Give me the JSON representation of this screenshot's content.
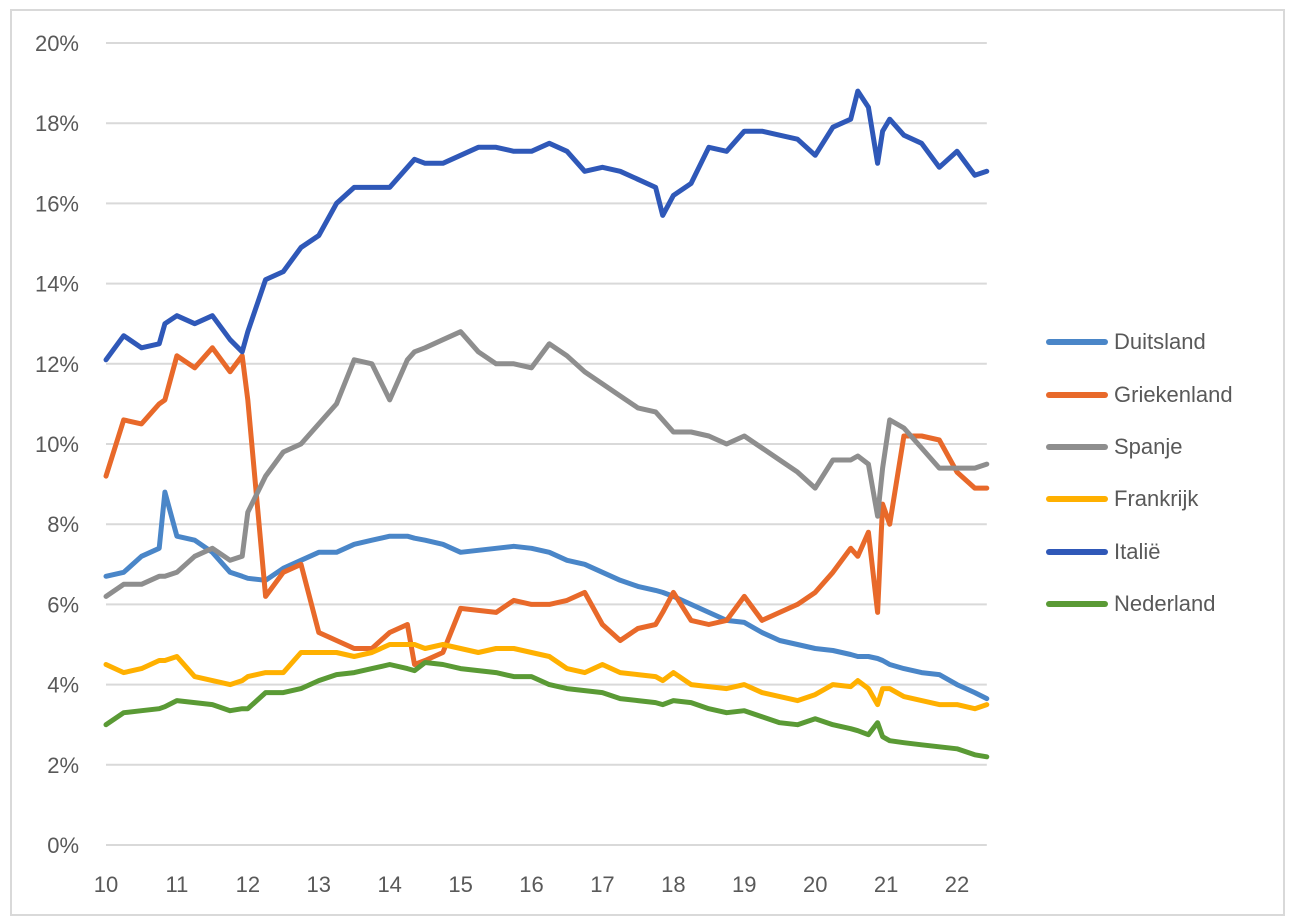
{
  "chart_data": {
    "type": "line",
    "title": "",
    "xlabel": "",
    "ylabel": "",
    "xlim": [
      10,
      22.42
    ],
    "ylim": [
      0,
      20
    ],
    "y_ticks": [
      "0%",
      "2%",
      "4%",
      "6%",
      "8%",
      "10%",
      "12%",
      "14%",
      "16%",
      "18%",
      "20%"
    ],
    "x_ticks": [
      "10",
      "11",
      "12",
      "13",
      "14",
      "15",
      "16",
      "17",
      "18",
      "19",
      "20",
      "21",
      "22"
    ],
    "grid": true,
    "legend_position": "right",
    "x": [
      10.0,
      10.25,
      10.5,
      10.75,
      10.83,
      11.0,
      11.25,
      11.5,
      11.75,
      11.92,
      12.0,
      12.25,
      12.5,
      12.75,
      13.0,
      13.25,
      13.5,
      13.75,
      14.0,
      14.25,
      14.35,
      14.5,
      14.75,
      15.0,
      15.25,
      15.5,
      15.75,
      16.0,
      16.25,
      16.5,
      16.75,
      17.0,
      17.25,
      17.5,
      17.75,
      17.85,
      18.0,
      18.25,
      18.5,
      18.75,
      19.0,
      19.25,
      19.5,
      19.75,
      20.0,
      20.25,
      20.5,
      20.6,
      20.75,
      20.88,
      20.95,
      21.05,
      21.25,
      21.5,
      21.75,
      22.0,
      22.25,
      22.42
    ],
    "series": [
      {
        "name": "Duitsland",
        "color": "#4a86c8",
        "values": [
          6.7,
          6.8,
          7.2,
          7.4,
          8.8,
          7.7,
          7.6,
          7.3,
          6.8,
          6.7,
          6.65,
          6.6,
          6.9,
          7.1,
          7.3,
          7.3,
          7.5,
          7.6,
          7.7,
          7.7,
          7.65,
          7.6,
          7.5,
          7.3,
          7.35,
          7.4,
          7.45,
          7.4,
          7.3,
          7.1,
          7.0,
          6.8,
          6.6,
          6.45,
          6.35,
          6.3,
          6.2,
          6.0,
          5.8,
          5.6,
          5.55,
          5.3,
          5.1,
          5.0,
          4.9,
          4.85,
          4.75,
          4.7,
          4.7,
          4.65,
          4.6,
          4.5,
          4.4,
          4.3,
          4.25,
          4.0,
          3.8,
          3.65
        ]
      },
      {
        "name": "Griekenland",
        "color": "#e8692a",
        "values": [
          9.2,
          10.6,
          10.5,
          11.0,
          11.1,
          12.2,
          11.9,
          12.4,
          11.8,
          12.2,
          11.1,
          6.2,
          6.8,
          7.0,
          5.3,
          5.1,
          4.9,
          4.9,
          5.3,
          5.5,
          4.5,
          4.6,
          4.8,
          5.9,
          5.85,
          5.8,
          6.1,
          6.0,
          6.0,
          6.1,
          6.3,
          5.5,
          5.1,
          5.4,
          5.5,
          5.8,
          6.3,
          5.6,
          5.5,
          5.6,
          6.2,
          5.6,
          5.8,
          6.0,
          6.3,
          6.8,
          7.4,
          7.2,
          7.8,
          5.8,
          8.5,
          8.0,
          10.2,
          10.2,
          10.1,
          9.3,
          8.9,
          8.9
        ]
      },
      {
        "name": "Spanje",
        "color": "#8e8e8e",
        "values": [
          6.2,
          6.5,
          6.5,
          6.7,
          6.7,
          6.8,
          7.2,
          7.4,
          7.1,
          7.2,
          8.3,
          9.2,
          9.8,
          10.0,
          10.5,
          11.0,
          12.1,
          12.0,
          11.1,
          12.1,
          12.3,
          12.4,
          12.6,
          12.8,
          12.3,
          12.0,
          12.0,
          11.9,
          12.5,
          12.2,
          11.8,
          11.5,
          11.2,
          10.9,
          10.8,
          10.6,
          10.3,
          10.3,
          10.2,
          10.0,
          10.2,
          9.9,
          9.6,
          9.3,
          8.9,
          9.6,
          9.6,
          9.7,
          9.5,
          8.2,
          9.4,
          10.6,
          10.4,
          9.9,
          9.4,
          9.4,
          9.4,
          9.5
        ]
      },
      {
        "name": "Frankrijk",
        "color": "#ffb000",
        "values": [
          4.5,
          4.3,
          4.4,
          4.6,
          4.6,
          4.7,
          4.2,
          4.1,
          4.0,
          4.1,
          4.2,
          4.3,
          4.3,
          4.8,
          4.8,
          4.8,
          4.7,
          4.8,
          5.0,
          5.0,
          5.0,
          4.9,
          5.0,
          4.9,
          4.8,
          4.9,
          4.9,
          4.8,
          4.7,
          4.4,
          4.3,
          4.5,
          4.3,
          4.25,
          4.2,
          4.1,
          4.3,
          4.0,
          3.95,
          3.9,
          4.0,
          3.8,
          3.7,
          3.6,
          3.75,
          4.0,
          3.95,
          4.1,
          3.9,
          3.5,
          3.9,
          3.9,
          3.7,
          3.6,
          3.5,
          3.5,
          3.4,
          3.5
        ]
      },
      {
        "name": "Italië",
        "color": "#2f58b8",
        "values": [
          12.1,
          12.7,
          12.4,
          12.5,
          13.0,
          13.2,
          13.0,
          13.2,
          12.6,
          12.3,
          12.8,
          14.1,
          14.3,
          14.9,
          15.2,
          16.0,
          16.4,
          16.4,
          16.4,
          16.9,
          17.1,
          17.0,
          17.0,
          17.2,
          17.4,
          17.4,
          17.3,
          17.3,
          17.5,
          17.3,
          16.8,
          16.9,
          16.8,
          16.6,
          16.4,
          15.7,
          16.2,
          16.5,
          17.4,
          17.3,
          17.8,
          17.8,
          17.7,
          17.6,
          17.2,
          17.9,
          18.1,
          18.8,
          18.4,
          17.0,
          17.8,
          18.1,
          17.7,
          17.5,
          16.9,
          17.3,
          16.7,
          16.8
        ]
      },
      {
        "name": "Nederland",
        "color": "#5a9a35",
        "values": [
          3.0,
          3.3,
          3.35,
          3.4,
          3.45,
          3.6,
          3.55,
          3.5,
          3.35,
          3.4,
          3.4,
          3.8,
          3.8,
          3.9,
          4.1,
          4.25,
          4.3,
          4.4,
          4.5,
          4.4,
          4.35,
          4.55,
          4.5,
          4.4,
          4.35,
          4.3,
          4.2,
          4.2,
          4.0,
          3.9,
          3.85,
          3.8,
          3.65,
          3.6,
          3.55,
          3.5,
          3.6,
          3.55,
          3.4,
          3.3,
          3.35,
          3.2,
          3.05,
          3.0,
          3.15,
          3.0,
          2.9,
          2.85,
          2.75,
          3.05,
          2.7,
          2.6,
          2.55,
          2.5,
          2.45,
          2.4,
          2.25,
          2.2
        ]
      }
    ]
  }
}
